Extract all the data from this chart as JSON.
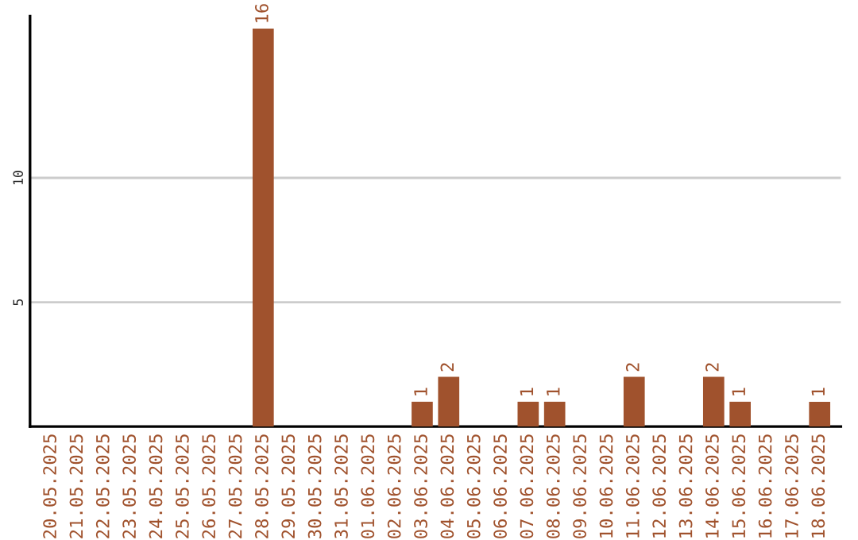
{
  "chart_data": {
    "type": "bar",
    "categories": [
      "20.05.2025",
      "21.05.2025",
      "22.05.2025",
      "23.05.2025",
      "24.05.2025",
      "25.05.2025",
      "26.05.2025",
      "27.05.2025",
      "28.05.2025",
      "29.05.2025",
      "30.05.2025",
      "31.05.2025",
      "01.06.2025",
      "02.06.2025",
      "03.06.2025",
      "04.06.2025",
      "05.06.2025",
      "06.06.2025",
      "07.06.2025",
      "08.06.2025",
      "09.06.2025",
      "10.06.2025",
      "11.06.2025",
      "12.06.2025",
      "13.06.2025",
      "14.06.2025",
      "15.06.2025",
      "16.06.2025",
      "17.06.2025",
      "18.06.2025"
    ],
    "values": [
      0,
      0,
      0,
      0,
      0,
      0,
      0,
      0,
      16,
      0,
      0,
      0,
      0,
      0,
      1,
      2,
      0,
      0,
      1,
      1,
      0,
      0,
      2,
      0,
      0,
      2,
      1,
      0,
      0,
      1
    ],
    "value_labels": [
      null,
      null,
      null,
      null,
      null,
      null,
      null,
      null,
      "16",
      null,
      null,
      null,
      null,
      null,
      "1",
      "2",
      null,
      null,
      "1",
      "1",
      null,
      null,
      "2",
      null,
      null,
      "2",
      "1",
      null,
      null,
      "1"
    ],
    "color": "#a0522d",
    "ylim": [
      0,
      16.5
    ],
    "yticks": [
      5,
      10
    ],
    "grid": "y"
  }
}
